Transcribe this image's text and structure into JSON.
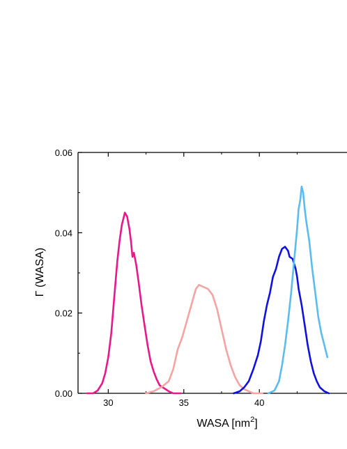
{
  "chart_data": {
    "type": "line",
    "xlabel": "WASA [nm",
    "xlabel_sup": "2",
    "xlabel_close": "]",
    "ylabel": "Γ (WASA)",
    "xlim": [
      28,
      45.8
    ],
    "ylim": [
      0,
      0.06
    ],
    "x_ticks": [
      30,
      35,
      40
    ],
    "x_tick_labels": [
      "30",
      "35",
      "40"
    ],
    "y_ticks": [
      0,
      0.02,
      0.04,
      0.06
    ],
    "y_tick_labels": [
      "0.00",
      "0.02",
      "0.04",
      "0.06"
    ],
    "grid": false,
    "legend": "none",
    "series": [
      {
        "color": "#e8178a",
        "points": [
          [
            28.6,
            0.0
          ],
          [
            29.0,
            0.0
          ],
          [
            29.3,
            0.0007
          ],
          [
            29.6,
            0.0025
          ],
          [
            29.8,
            0.005
          ],
          [
            30.0,
            0.009
          ],
          [
            30.2,
            0.015
          ],
          [
            30.4,
            0.024
          ],
          [
            30.6,
            0.033
          ],
          [
            30.75,
            0.038
          ],
          [
            30.9,
            0.042
          ],
          [
            31.0,
            0.0435
          ],
          [
            31.1,
            0.045
          ],
          [
            31.25,
            0.044
          ],
          [
            31.4,
            0.041
          ],
          [
            31.5,
            0.038
          ],
          [
            31.6,
            0.034
          ],
          [
            31.7,
            0.035
          ],
          [
            31.85,
            0.032
          ],
          [
            32.0,
            0.028
          ],
          [
            32.2,
            0.022
          ],
          [
            32.4,
            0.017
          ],
          [
            32.6,
            0.012
          ],
          [
            32.8,
            0.008
          ],
          [
            33.0,
            0.0055
          ],
          [
            33.2,
            0.0035
          ],
          [
            33.4,
            0.002
          ],
          [
            33.6,
            0.0015
          ],
          [
            33.8,
            0.001
          ],
          [
            34.0,
            0.0005
          ],
          [
            34.3,
            0.0
          ],
          [
            34.8,
            0.0
          ]
        ]
      },
      {
        "color": "#f5a3a3",
        "points": [
          [
            32.5,
            0.0
          ],
          [
            33.0,
            0.0005
          ],
          [
            33.5,
            0.0015
          ],
          [
            34.0,
            0.003
          ],
          [
            34.3,
            0.006
          ],
          [
            34.6,
            0.011
          ],
          [
            34.9,
            0.014
          ],
          [
            35.2,
            0.018
          ],
          [
            35.5,
            0.022
          ],
          [
            35.8,
            0.026
          ],
          [
            36.0,
            0.027
          ],
          [
            36.3,
            0.0265
          ],
          [
            36.6,
            0.026
          ],
          [
            36.9,
            0.0245
          ],
          [
            37.2,
            0.021
          ],
          [
            37.5,
            0.016
          ],
          [
            37.8,
            0.011
          ],
          [
            38.1,
            0.007
          ],
          [
            38.4,
            0.004
          ],
          [
            38.7,
            0.002
          ],
          [
            39.0,
            0.001
          ],
          [
            39.3,
            0.0005
          ],
          [
            39.6,
            0.0
          ],
          [
            40.2,
            0.0
          ]
        ]
      },
      {
        "color": "#1010e0",
        "points": [
          [
            38.3,
            0.0
          ],
          [
            38.7,
            0.0005
          ],
          [
            39.0,
            0.0015
          ],
          [
            39.3,
            0.003
          ],
          [
            39.6,
            0.006
          ],
          [
            39.9,
            0.0095
          ],
          [
            40.1,
            0.013
          ],
          [
            40.3,
            0.018
          ],
          [
            40.5,
            0.022
          ],
          [
            40.7,
            0.025
          ],
          [
            40.9,
            0.029
          ],
          [
            41.1,
            0.031
          ],
          [
            41.3,
            0.034
          ],
          [
            41.5,
            0.036
          ],
          [
            41.7,
            0.0365
          ],
          [
            41.9,
            0.0355
          ],
          [
            42.0,
            0.034
          ],
          [
            42.2,
            0.0335
          ],
          [
            42.4,
            0.031
          ],
          [
            42.5,
            0.029
          ],
          [
            42.6,
            0.026
          ],
          [
            42.8,
            0.022
          ],
          [
            43.0,
            0.017
          ],
          [
            43.2,
            0.012
          ],
          [
            43.4,
            0.008
          ],
          [
            43.6,
            0.005
          ],
          [
            43.8,
            0.003
          ],
          [
            44.0,
            0.0015
          ],
          [
            44.3,
            0.0005
          ],
          [
            44.6,
            0.0
          ]
        ]
      },
      {
        "color": "#5bbcf0",
        "points": [
          [
            40.6,
            0.0
          ],
          [
            41.0,
            0.0007
          ],
          [
            41.3,
            0.003
          ],
          [
            41.5,
            0.007
          ],
          [
            41.7,
            0.012
          ],
          [
            41.9,
            0.018
          ],
          [
            42.1,
            0.025
          ],
          [
            42.3,
            0.033
          ],
          [
            42.5,
            0.041
          ],
          [
            42.6,
            0.046
          ],
          [
            42.7,
            0.048
          ],
          [
            42.8,
            0.0515
          ],
          [
            42.9,
            0.05
          ],
          [
            43.0,
            0.046
          ],
          [
            43.1,
            0.043
          ],
          [
            43.3,
            0.038
          ],
          [
            43.5,
            0.031
          ],
          [
            43.7,
            0.025
          ],
          [
            43.9,
            0.019
          ],
          [
            44.1,
            0.015
          ],
          [
            44.3,
            0.012
          ],
          [
            44.5,
            0.009
          ]
        ]
      }
    ]
  }
}
